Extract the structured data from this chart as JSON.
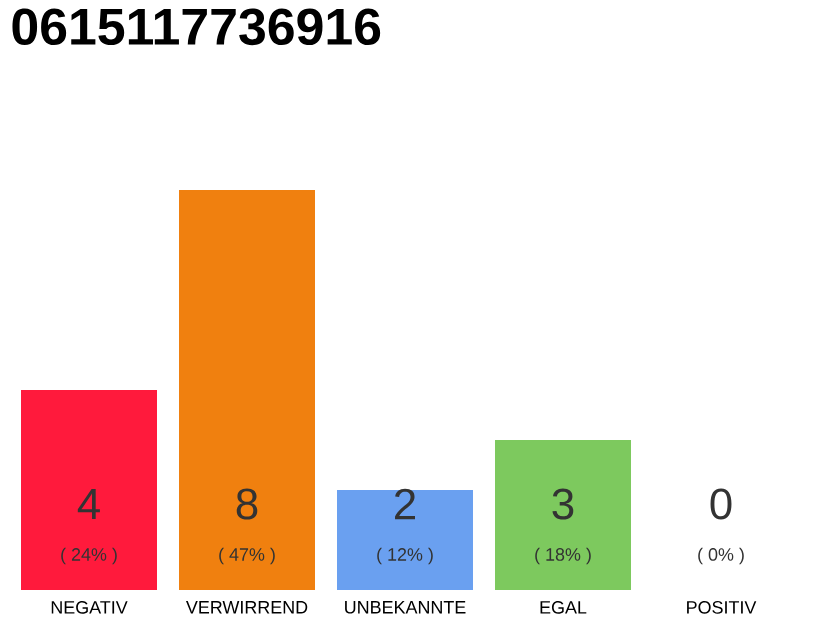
{
  "chart_data": {
    "type": "bar",
    "title": "0615117736916",
    "categories": [
      "NEGATIV",
      "VERWIRREND",
      "UNBEKANNTE",
      "EGAL",
      "POSITIV"
    ],
    "values": [
      4,
      8,
      2,
      3,
      0
    ],
    "colors": [
      "#ff1a3c",
      "#f0800f",
      "#6aa0f0",
      "#7dc95e",
      "#cccccc"
    ],
    "value_labels": [
      "4",
      "8",
      "2",
      "3",
      "0"
    ],
    "annotations": [
      "( 24% )",
      "( 47% )",
      "( 12% )",
      "( 18% )",
      "( 0% )"
    ]
  }
}
